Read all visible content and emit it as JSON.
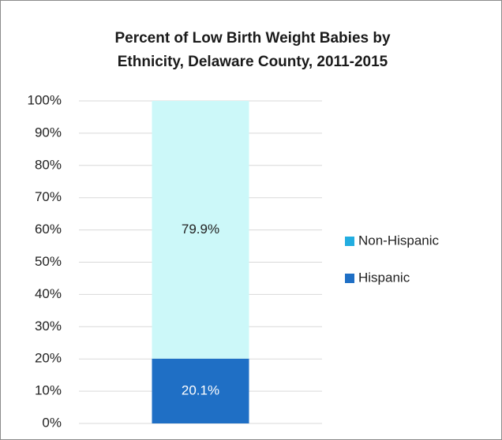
{
  "chart_data": {
    "type": "stacked_bar",
    "title": "Percent of Low Birth Weight Babies by Ethnicity, Delaware County, 2011-2015",
    "categories": [
      null
    ],
    "series": [
      {
        "name": "Hispanic",
        "color": "#1f6fc5",
        "legend_color": "#1f6fc5",
        "label_color": "#ffffff",
        "values": [
          20.1
        ],
        "value_labels": [
          "20.1%"
        ]
      },
      {
        "name": "Non-Hispanic",
        "color": "#ccf8f9",
        "legend_color": "#22ade0",
        "label_color": "#222222",
        "values": [
          79.9
        ],
        "value_labels": [
          "79.9%"
        ]
      }
    ],
    "ylim": [
      0,
      100
    ],
    "yticks": [
      {
        "value": 0,
        "label": "0%"
      },
      {
        "value": 10,
        "label": "10%"
      },
      {
        "value": 20,
        "label": "20%"
      },
      {
        "value": 30,
        "label": "30%"
      },
      {
        "value": 40,
        "label": "40%"
      },
      {
        "value": 50,
        "label": "50%"
      },
      {
        "value": 60,
        "label": "60%"
      },
      {
        "value": 70,
        "label": "70%"
      },
      {
        "value": 80,
        "label": "80%"
      },
      {
        "value": 90,
        "label": "90%"
      },
      {
        "value": 100,
        "label": "100%"
      }
    ],
    "grid": true,
    "legend": "right"
  }
}
